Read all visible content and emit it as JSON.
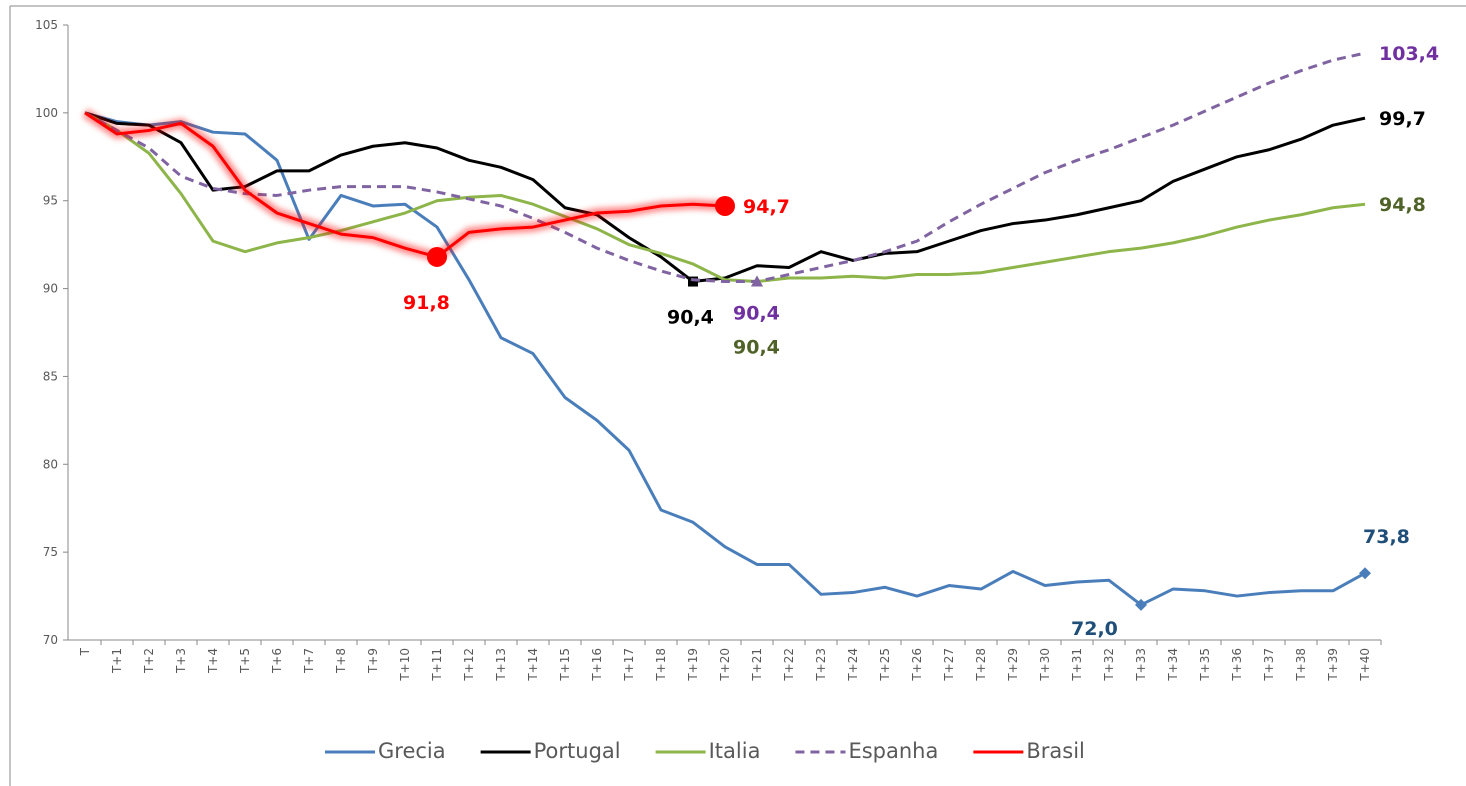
{
  "chart_data": {
    "type": "line",
    "categories": [
      "T",
      "T+1",
      "T+2",
      "T+3",
      "T+4",
      "T+5",
      "T+6",
      "T+7",
      "T+8",
      "T+9",
      "T+10",
      "T+11",
      "T+12",
      "T+13",
      "T+14",
      "T+15",
      "T+16",
      "T+17",
      "T+18",
      "T+19",
      "T+20",
      "T+21",
      "T+22",
      "T+23",
      "T+24",
      "T+25",
      "T+26",
      "T+27",
      "T+28",
      "T+29",
      "T+30",
      "T+31",
      "T+32",
      "T+33",
      "T+34",
      "T+35",
      "T+36",
      "T+37",
      "T+38",
      "T+39",
      "T+40"
    ],
    "ylim": [
      70,
      105
    ],
    "yticks": [
      70,
      75,
      80,
      85,
      90,
      95,
      100,
      105
    ],
    "series": [
      {
        "name": "Grecia",
        "color": "#4a7ebb",
        "label_color": "#1f4e79",
        "marker": "diamond",
        "values": [
          100,
          99.5,
          99.3,
          99.5,
          98.9,
          98.8,
          97.3,
          92.8,
          95.3,
          94.7,
          94.8,
          93.5,
          90.5,
          87.2,
          86.3,
          83.8,
          82.5,
          80.8,
          77.4,
          76.7,
          75.3,
          74.3,
          74.3,
          72.6,
          72.7,
          73.0,
          72.5,
          73.1,
          72.9,
          73.9,
          73.1,
          73.3,
          73.4,
          72.0,
          72.9,
          72.8,
          72.5,
          72.7,
          72.8,
          72.8,
          73.8
        ],
        "value_labels": [
          null,
          null,
          null,
          null,
          null,
          null,
          null,
          null,
          null,
          null,
          null,
          null,
          null,
          null,
          null,
          null,
          null,
          null,
          null,
          null,
          null,
          null,
          null,
          null,
          null,
          null,
          null,
          null,
          null,
          null,
          null,
          null,
          null,
          "72,0",
          null,
          null,
          null,
          null,
          null,
          null,
          "73,8"
        ]
      },
      {
        "name": "Portugal",
        "color": "#000000",
        "label_color": "#000000",
        "marker": "square",
        "values": [
          100,
          99.4,
          99.3,
          98.3,
          95.6,
          95.8,
          96.7,
          96.7,
          97.6,
          98.1,
          98.3,
          98.0,
          97.3,
          96.9,
          96.2,
          94.6,
          94.2,
          92.9,
          91.8,
          90.4,
          90.6,
          91.3,
          91.2,
          92.1,
          91.6,
          92.0,
          92.1,
          92.7,
          93.3,
          93.7,
          93.9,
          94.2,
          94.6,
          95.0,
          96.1,
          96.8,
          97.5,
          97.9,
          98.5,
          99.3,
          99.7
        ],
        "value_labels": [
          null,
          null,
          null,
          null,
          null,
          null,
          null,
          null,
          null,
          null,
          null,
          null,
          null,
          null,
          null,
          null,
          null,
          null,
          null,
          "90,4",
          null,
          null,
          null,
          null,
          null,
          null,
          null,
          null,
          null,
          null,
          null,
          null,
          null,
          null,
          null,
          null,
          null,
          null,
          null,
          null,
          "99,7"
        ]
      },
      {
        "name": "Italia",
        "color": "#8db54a",
        "label_color": "#4f6228",
        "marker": "triangle",
        "values": [
          100,
          99.0,
          97.7,
          95.4,
          92.7,
          92.1,
          92.6,
          92.9,
          93.3,
          93.8,
          94.3,
          95.0,
          95.2,
          95.3,
          94.8,
          94.1,
          93.4,
          92.5,
          92.0,
          91.4,
          90.5,
          90.4,
          90.6,
          90.6,
          90.7,
          90.6,
          90.8,
          90.8,
          90.9,
          91.2,
          91.5,
          91.8,
          92.1,
          92.3,
          92.6,
          93.0,
          93.5,
          93.9,
          94.2,
          94.6,
          94.8
        ],
        "value_labels": [
          null,
          null,
          null,
          null,
          null,
          null,
          null,
          null,
          null,
          null,
          null,
          null,
          null,
          null,
          null,
          null,
          null,
          null,
          null,
          null,
          null,
          "90,4",
          null,
          null,
          null,
          null,
          null,
          null,
          null,
          null,
          null,
          null,
          null,
          null,
          null,
          null,
          null,
          null,
          null,
          null,
          "94,8"
        ]
      },
      {
        "name": "Espanha",
        "color": "#8064a2",
        "label_color": "#7030a0",
        "marker": "triangle",
        "dashed": true,
        "values": [
          100,
          99.0,
          98.0,
          96.4,
          95.7,
          95.4,
          95.3,
          95.6,
          95.8,
          95.8,
          95.8,
          95.5,
          95.1,
          94.7,
          94.0,
          93.2,
          92.3,
          91.6,
          91.0,
          90.5,
          90.4,
          90.4,
          90.8,
          91.2,
          91.6,
          92.1,
          92.7,
          93.8,
          94.8,
          95.7,
          96.6,
          97.3,
          97.9,
          98.6,
          99.3,
          100.1,
          100.9,
          101.7,
          102.4,
          103.0,
          103.4
        ],
        "value_labels": [
          null,
          null,
          null,
          null,
          null,
          null,
          null,
          null,
          null,
          null,
          null,
          null,
          null,
          null,
          null,
          null,
          null,
          null,
          null,
          null,
          null,
          "90,4",
          null,
          null,
          null,
          null,
          null,
          null,
          null,
          null,
          null,
          null,
          null,
          null,
          null,
          null,
          null,
          null,
          null,
          null,
          "103,4"
        ]
      },
      {
        "name": "Brasil",
        "color": "#ff0000",
        "label_color": "#ff0000",
        "marker": "circle",
        "glow": true,
        "values": [
          100,
          98.8,
          99.0,
          99.4,
          98.1,
          95.6,
          94.3,
          93.7,
          93.1,
          92.9,
          92.3,
          91.8,
          93.2,
          93.4,
          93.5,
          93.9,
          94.3,
          94.4,
          94.7,
          94.8,
          94.7,
          null,
          null,
          null,
          null,
          null,
          null,
          null,
          null,
          null,
          null,
          null,
          null,
          null,
          null,
          null,
          null,
          null,
          null,
          null,
          null
        ],
        "value_labels": [
          null,
          null,
          null,
          null,
          null,
          null,
          null,
          null,
          null,
          null,
          null,
          "91,8",
          null,
          null,
          null,
          null,
          null,
          null,
          null,
          null,
          "94,7",
          null,
          null,
          null,
          null,
          null,
          null,
          null,
          null,
          null,
          null,
          null,
          null,
          null,
          null,
          null,
          null,
          null,
          null,
          null,
          null
        ]
      }
    ]
  }
}
